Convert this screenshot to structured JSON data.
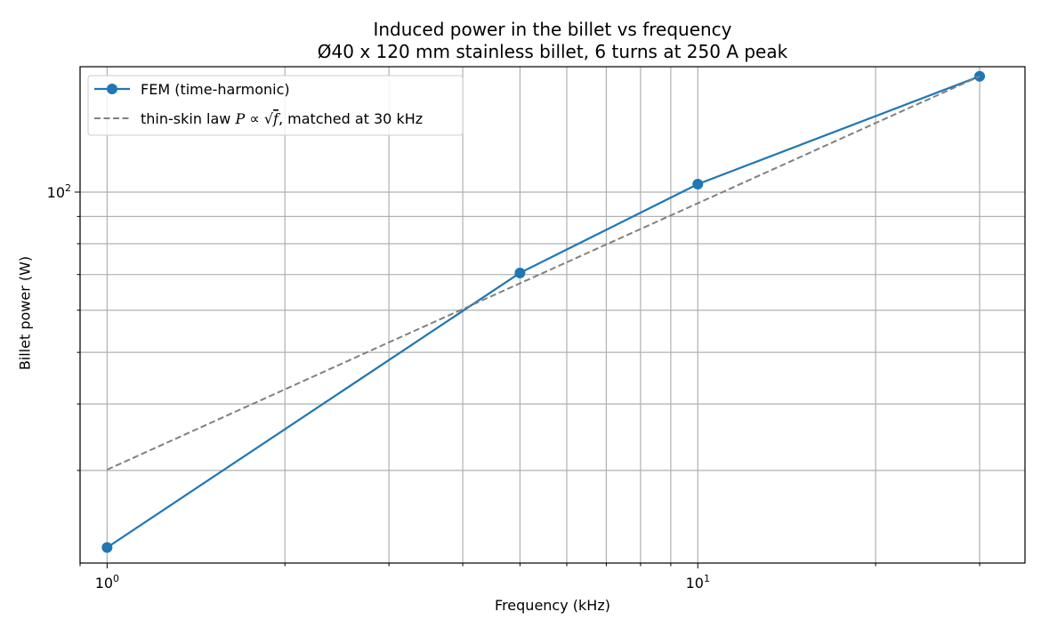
{
  "chart_data": {
    "type": "line",
    "title": "Induced power in the billet vs frequency",
    "subtitle": "Ø40 x 120 mm stainless billet, 6 turns at 250 A peak",
    "xlabel": "Frequency (kHz)",
    "ylabel": "Billet power (W)",
    "xscale": "log",
    "yscale": "log",
    "xlim": [
      0.9,
      35.8
    ],
    "ylim": [
      20.1,
      172
    ],
    "x_major_ticks": [
      1,
      10
    ],
    "x_tick_labels": [
      {
        "base": "10",
        "exp": "0"
      },
      {
        "base": "10",
        "exp": "1"
      }
    ],
    "y_major_ticks": [
      100
    ],
    "y_tick_labels": [
      {
        "base": "10",
        "exp": "2"
      }
    ],
    "grid": true,
    "legend_position": "top-left",
    "series": [
      {
        "name": "FEM (time-harmonic)",
        "style": "solid",
        "marker": "circle",
        "color": "#1f77b4",
        "x": [
          1,
          5,
          10,
          30
        ],
        "y": [
          21.5,
          70.5,
          103.5,
          165
        ]
      },
      {
        "name": "thin-skin law P ∝ √f, matched at 30 kHz",
        "legend_parts": {
          "prefix": "thin-skin law ",
          "sym": "P",
          "prop": " ∝ ",
          "root": "√",
          "arg": "f",
          "suffix": ", matched at 30 kHz"
        },
        "style": "dashed",
        "marker": "none",
        "color": "#808080",
        "x": [
          1,
          3,
          5,
          10,
          20,
          30
        ],
        "y": [
          30.1,
          52.2,
          67.4,
          95.3,
          134.8,
          165
        ]
      }
    ]
  }
}
